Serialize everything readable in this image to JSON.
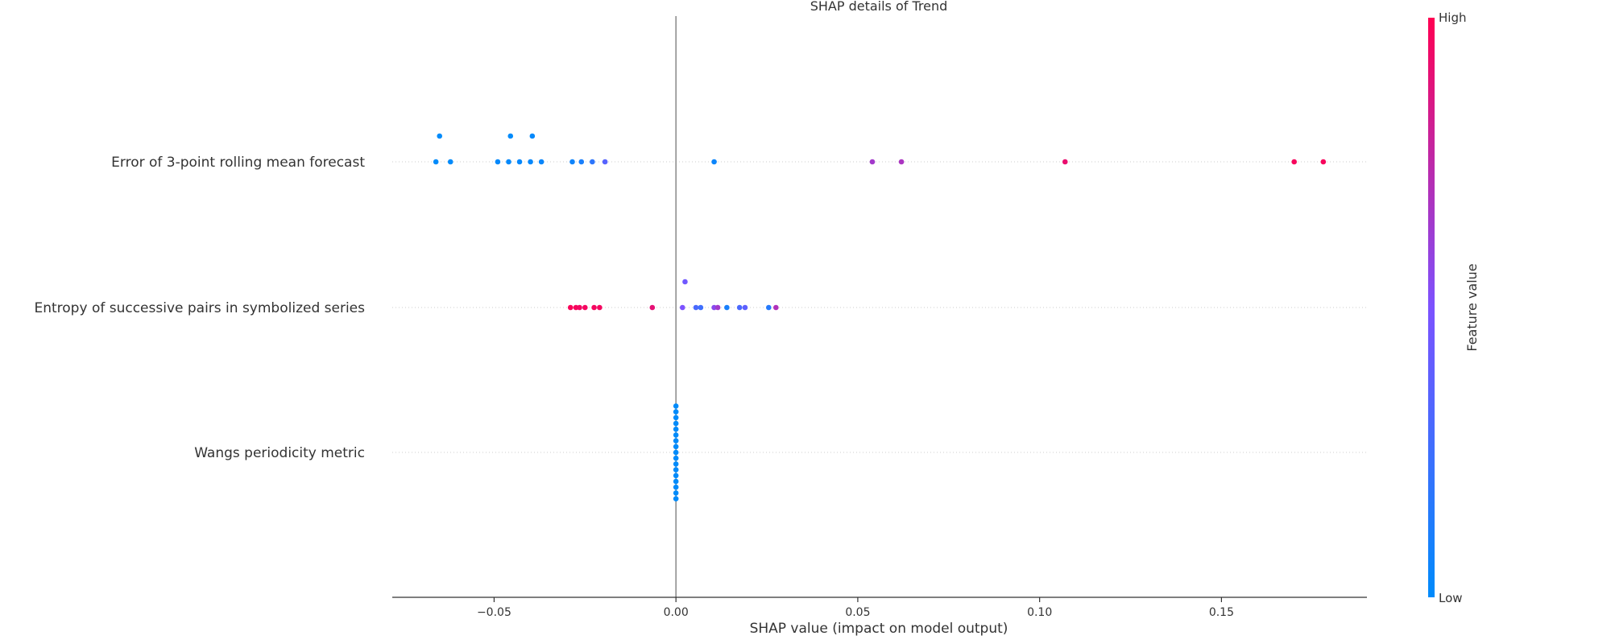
{
  "chart_data": {
    "type": "scatter",
    "subtype": "shap-beeswarm",
    "title": "SHAP details of Trend",
    "xlabel": "SHAP value (impact on model output)",
    "xlim": [
      -0.078,
      0.19
    ],
    "xticks": [
      -0.05,
      0.0,
      0.05,
      0.1,
      0.15
    ],
    "xtick_labels": [
      "−0.05",
      "0.00",
      "0.05",
      "0.10",
      "0.15"
    ],
    "zero_line": true,
    "colorbar": {
      "label": "Feature value",
      "high_label": "High",
      "low_label": "Low",
      "low_color": "#008bfb",
      "mid_color": "#7c52ff",
      "high_color": "#ff0052"
    },
    "features": [
      {
        "name": "Error of 3-point rolling mean forecast",
        "points": [
          {
            "shap": -0.065,
            "value": 0.0,
            "stack": 1
          },
          {
            "shap": -0.0455,
            "value": 0.0,
            "stack": 1
          },
          {
            "shap": -0.0395,
            "value": 0.02,
            "stack": 1
          },
          {
            "shap": -0.066,
            "value": 0.0,
            "stack": 0
          },
          {
            "shap": -0.062,
            "value": 0.0,
            "stack": 0
          },
          {
            "shap": -0.049,
            "value": 0.02,
            "stack": 0
          },
          {
            "shap": -0.046,
            "value": 0.02,
            "stack": 0
          },
          {
            "shap": -0.043,
            "value": 0.03,
            "stack": 0
          },
          {
            "shap": -0.04,
            "value": 0.03,
            "stack": 0
          },
          {
            "shap": -0.037,
            "value": 0.04,
            "stack": 0
          },
          {
            "shap": -0.0285,
            "value": 0.06,
            "stack": 0
          },
          {
            "shap": -0.026,
            "value": 0.1,
            "stack": 0
          },
          {
            "shap": -0.023,
            "value": 0.18,
            "stack": 0
          },
          {
            "shap": -0.0195,
            "value": 0.35,
            "stack": 0
          },
          {
            "shap": 0.0105,
            "value": 0.05,
            "stack": 0
          },
          {
            "shap": 0.054,
            "value": 0.65,
            "stack": 0
          },
          {
            "shap": 0.062,
            "value": 0.68,
            "stack": 0
          },
          {
            "shap": 0.107,
            "value": 0.92,
            "stack": 0
          },
          {
            "shap": 0.17,
            "value": 0.97,
            "stack": 0
          },
          {
            "shap": 0.178,
            "value": 0.97,
            "stack": 0
          }
        ]
      },
      {
        "name": "Entropy of successive pairs in symbolized series",
        "points": [
          {
            "shap": 0.0025,
            "value": 0.45,
            "stack": 1
          },
          {
            "shap": -0.029,
            "value": 0.98,
            "stack": 0
          },
          {
            "shap": -0.0275,
            "value": 0.97,
            "stack": 0
          },
          {
            "shap": -0.0265,
            "value": 0.95,
            "stack": 0
          },
          {
            "shap": -0.025,
            "value": 0.96,
            "stack": 0
          },
          {
            "shap": -0.0225,
            "value": 0.96,
            "stack": 0
          },
          {
            "shap": -0.021,
            "value": 0.96,
            "stack": 0
          },
          {
            "shap": -0.0065,
            "value": 0.9,
            "stack": 0
          },
          {
            "shap": 0.0018,
            "value": 0.5,
            "stack": 0
          },
          {
            "shap": 0.0055,
            "value": 0.3,
            "stack": 0
          },
          {
            "shap": 0.0068,
            "value": 0.25,
            "stack": 0
          },
          {
            "shap": 0.0105,
            "value": 0.55,
            "stack": 0
          },
          {
            "shap": 0.0115,
            "value": 0.65,
            "stack": 0
          },
          {
            "shap": 0.014,
            "value": 0.1,
            "stack": 0
          },
          {
            "shap": 0.0175,
            "value": 0.3,
            "stack": 0
          },
          {
            "shap": 0.019,
            "value": 0.38,
            "stack": 0
          },
          {
            "shap": 0.0255,
            "value": 0.15,
            "stack": 0
          },
          {
            "shap": 0.0275,
            "value": 0.7,
            "stack": 0
          }
        ]
      },
      {
        "name": "Wangs periodicity metric",
        "points": [
          {
            "shap": 0.0,
            "value": 0.0,
            "stack": 8
          },
          {
            "shap": 0.0,
            "value": 0.0,
            "stack": 7
          },
          {
            "shap": 0.0,
            "value": 0.0,
            "stack": 6
          },
          {
            "shap": 0.0,
            "value": 0.0,
            "stack": 5
          },
          {
            "shap": 0.0,
            "value": 0.0,
            "stack": 4
          },
          {
            "shap": 0.0,
            "value": 0.0,
            "stack": 3
          },
          {
            "shap": 0.0,
            "value": 0.0,
            "stack": 2
          },
          {
            "shap": 0.0,
            "value": 0.0,
            "stack": 1
          },
          {
            "shap": 0.0,
            "value": 0.0,
            "stack": 0
          },
          {
            "shap": 0.0,
            "value": 0.0,
            "stack": -1
          },
          {
            "shap": 0.0,
            "value": 0.0,
            "stack": -2
          },
          {
            "shap": 0.0,
            "value": 0.0,
            "stack": -3
          },
          {
            "shap": 0.0,
            "value": 0.0,
            "stack": -4
          },
          {
            "shap": 0.0,
            "value": 0.0,
            "stack": -5
          },
          {
            "shap": 0.0,
            "value": 0.0,
            "stack": -6
          },
          {
            "shap": 0.0,
            "value": 0.0,
            "stack": -7
          },
          {
            "shap": 0.0,
            "value": 0.0,
            "stack": -8
          }
        ]
      }
    ]
  }
}
